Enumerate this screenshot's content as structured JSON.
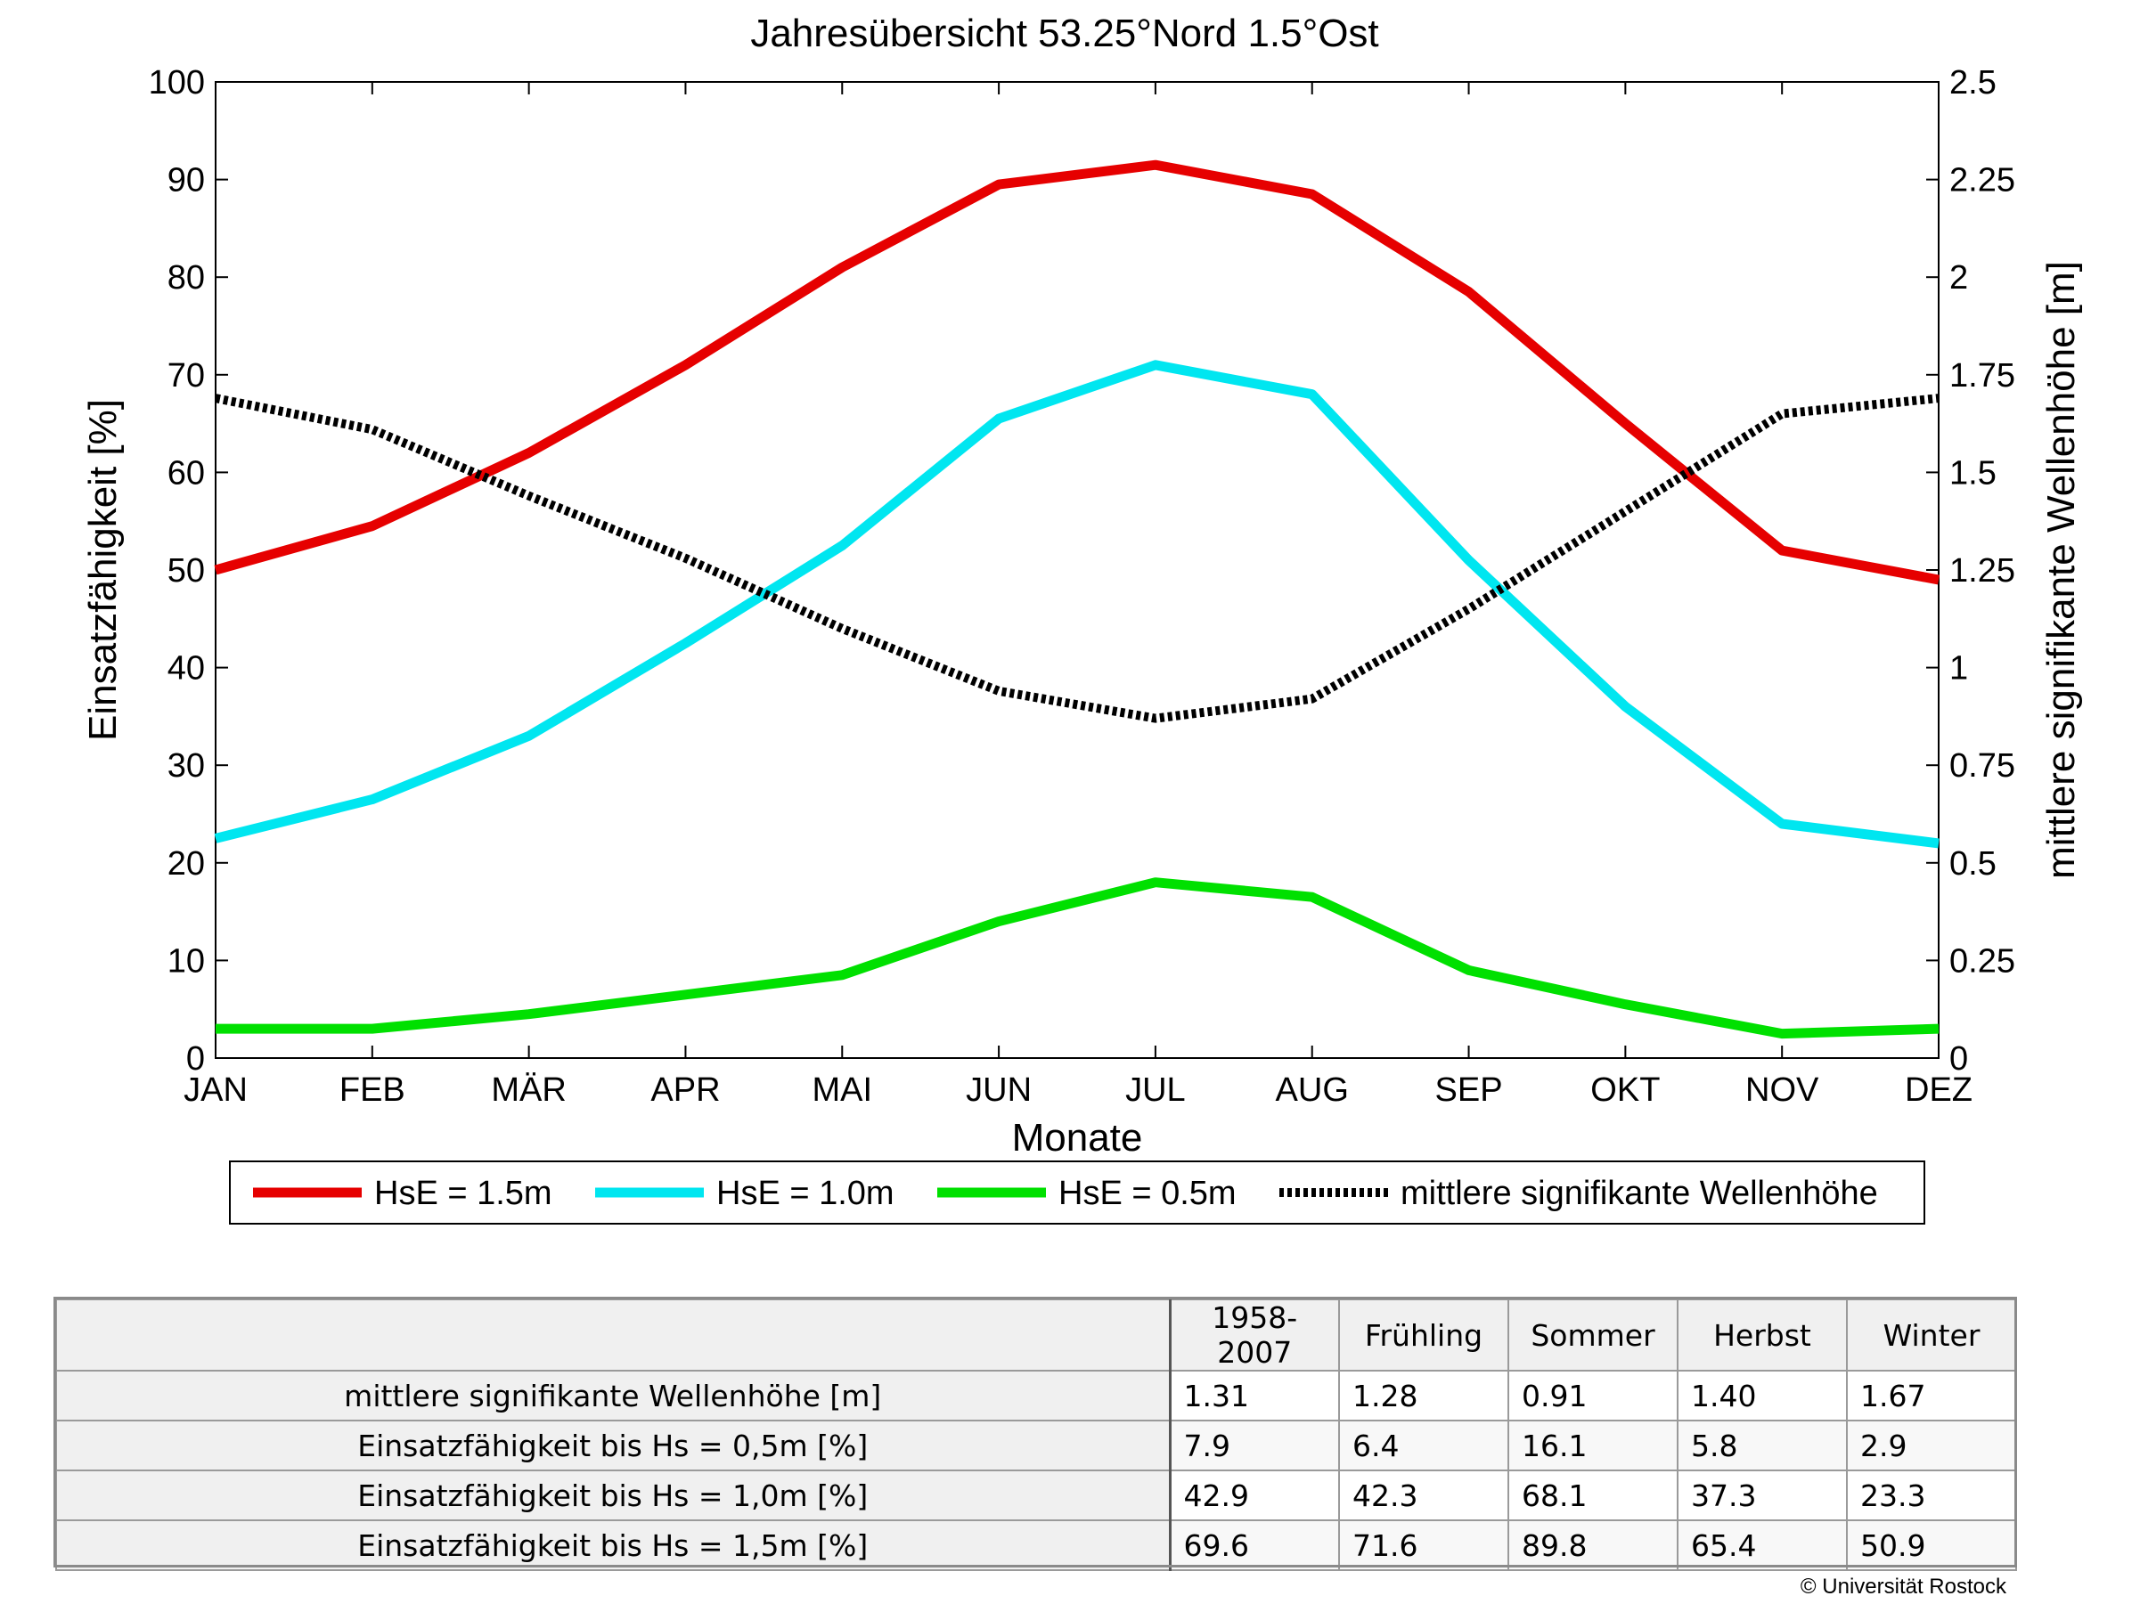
{
  "chart_data": {
    "type": "line",
    "title": "Jahresübersicht  53.25°Nord  1.5°Ost",
    "xlabel": "Monate",
    "ylabel": "Einsatzfähigkeit [%]",
    "y2label": "mittlere signifikante Wellenhöhe [m]",
    "categories": [
      "JAN",
      "FEB",
      "MÄR",
      "APR",
      "MAI",
      "JUN",
      "JUL",
      "AUG",
      "SEP",
      "OKT",
      "NOV",
      "DEZ"
    ],
    "ylim": [
      0,
      100
    ],
    "yticks": [
      "0",
      "10",
      "20",
      "30",
      "40",
      "50",
      "60",
      "70",
      "80",
      "90",
      "100"
    ],
    "y2lim": [
      0,
      2.5
    ],
    "y2ticks": [
      "0",
      "0.25",
      "0.5",
      "0.75",
      "1",
      "1.25",
      "1.5",
      "1.75",
      "2",
      "2.25",
      "2.5"
    ],
    "grid": false,
    "legend_position": "below-plot",
    "series": [
      {
        "name": "HsE = 1.5m",
        "axis": "left",
        "color": "#e60000",
        "style": "solid",
        "values": [
          50,
          54.5,
          62,
          71,
          81,
          89.5,
          91.5,
          88.5,
          78.5,
          65,
          52,
          49
        ]
      },
      {
        "name": "HsE = 1.0m",
        "axis": "left",
        "color": "#00e6f0",
        "style": "solid",
        "values": [
          22.5,
          26.5,
          33,
          42.5,
          52.5,
          65.5,
          71,
          68,
          51,
          36,
          24,
          22
        ]
      },
      {
        "name": "HsE = 0.5m",
        "axis": "left",
        "color": "#00e000",
        "style": "solid",
        "values": [
          3,
          3,
          4.5,
          6.5,
          8.5,
          14,
          18,
          16.5,
          9,
          5.5,
          2.5,
          3
        ]
      },
      {
        "name": "mittlere signifikante Wellenhöhe",
        "axis": "right",
        "color": "#000000",
        "style": "dotted",
        "values": [
          1.69,
          1.61,
          1.44,
          1.28,
          1.1,
          0.94,
          0.87,
          0.92,
          1.15,
          1.4,
          1.65,
          1.69
        ]
      }
    ]
  },
  "table": {
    "columns": [
      "1958-2007",
      "Frühling",
      "Sommer",
      "Herbst",
      "Winter"
    ],
    "rows": [
      {
        "label": "mittlere signifikante Wellenhöhe [m]",
        "values": [
          "1.31",
          "1.28",
          "0.91",
          "1.40",
          "1.67"
        ]
      },
      {
        "label": "Einsatzfähigkeit bis Hs = 0,5m [%]",
        "values": [
          "7.9",
          "6.4",
          "16.1",
          "5.8",
          "2.9"
        ]
      },
      {
        "label": "Einsatzfähigkeit bis Hs = 1,0m [%]",
        "values": [
          "42.9",
          "42.3",
          "68.1",
          "37.3",
          "23.3"
        ]
      },
      {
        "label": "Einsatzfähigkeit bis Hs = 1,5m [%]",
        "values": [
          "69.6",
          "71.6",
          "89.8",
          "65.4",
          "50.9"
        ]
      }
    ]
  },
  "copyright": "© Universität Rostock"
}
